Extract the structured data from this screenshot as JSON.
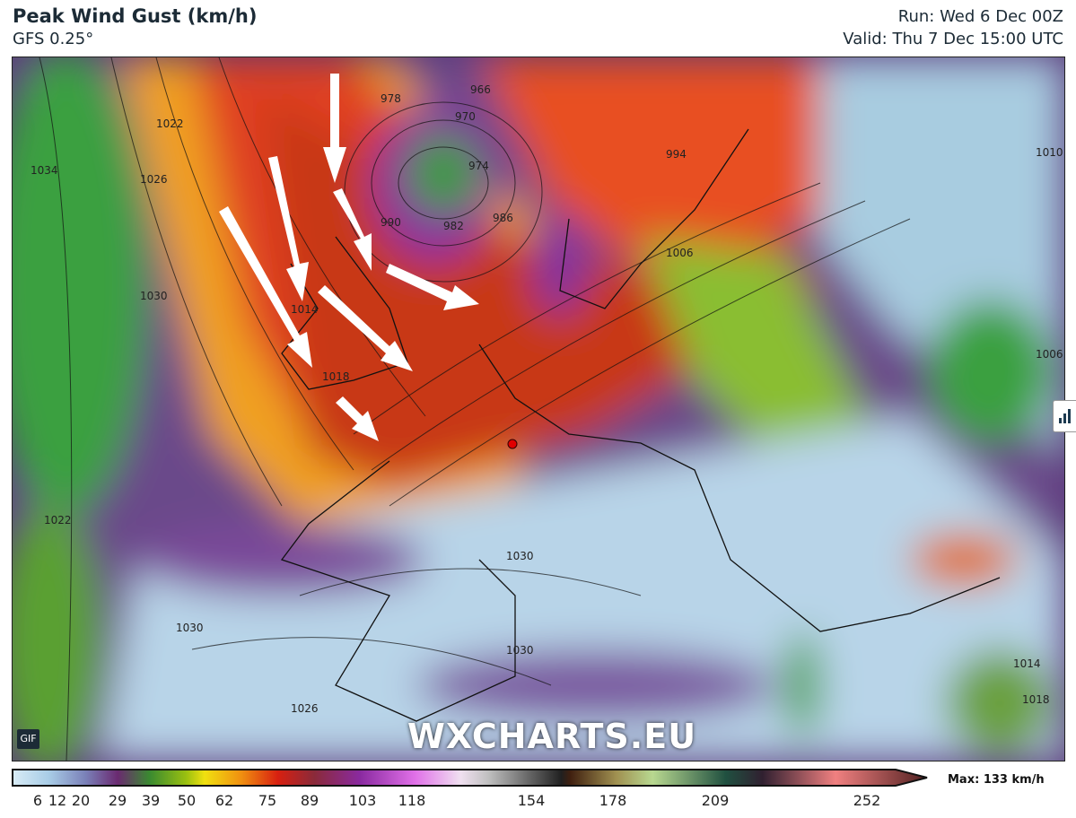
{
  "header": {
    "title": "Peak Wind Gust (km/h)",
    "model": "GFS 0.25°",
    "run": "Run: Wed 6 Dec 00Z",
    "valid": "Valid: Thu 7 Dec 15:00 UTC"
  },
  "map": {
    "watermark": "WXCHARTS.EU",
    "gif_label": "GIF",
    "chart_icon": "bar-chart-icon",
    "isobar_labels": [
      "1022",
      "1026",
      "1030",
      "1034",
      "978",
      "970",
      "966",
      "974",
      "990",
      "982",
      "986",
      "994",
      "1006",
      "1010",
      "1014",
      "1018",
      "1022",
      "1030",
      "1030",
      "1026",
      "1030",
      "1014",
      "1018",
      "1006"
    ],
    "marker_color": "#e00000"
  },
  "legend": {
    "ticks": [
      "6",
      "12",
      "20",
      "29",
      "39",
      "50",
      "62",
      "75",
      "89",
      "103",
      "118",
      "154",
      "178",
      "209",
      "252"
    ],
    "max_label": "Max: 133 km/h"
  }
}
